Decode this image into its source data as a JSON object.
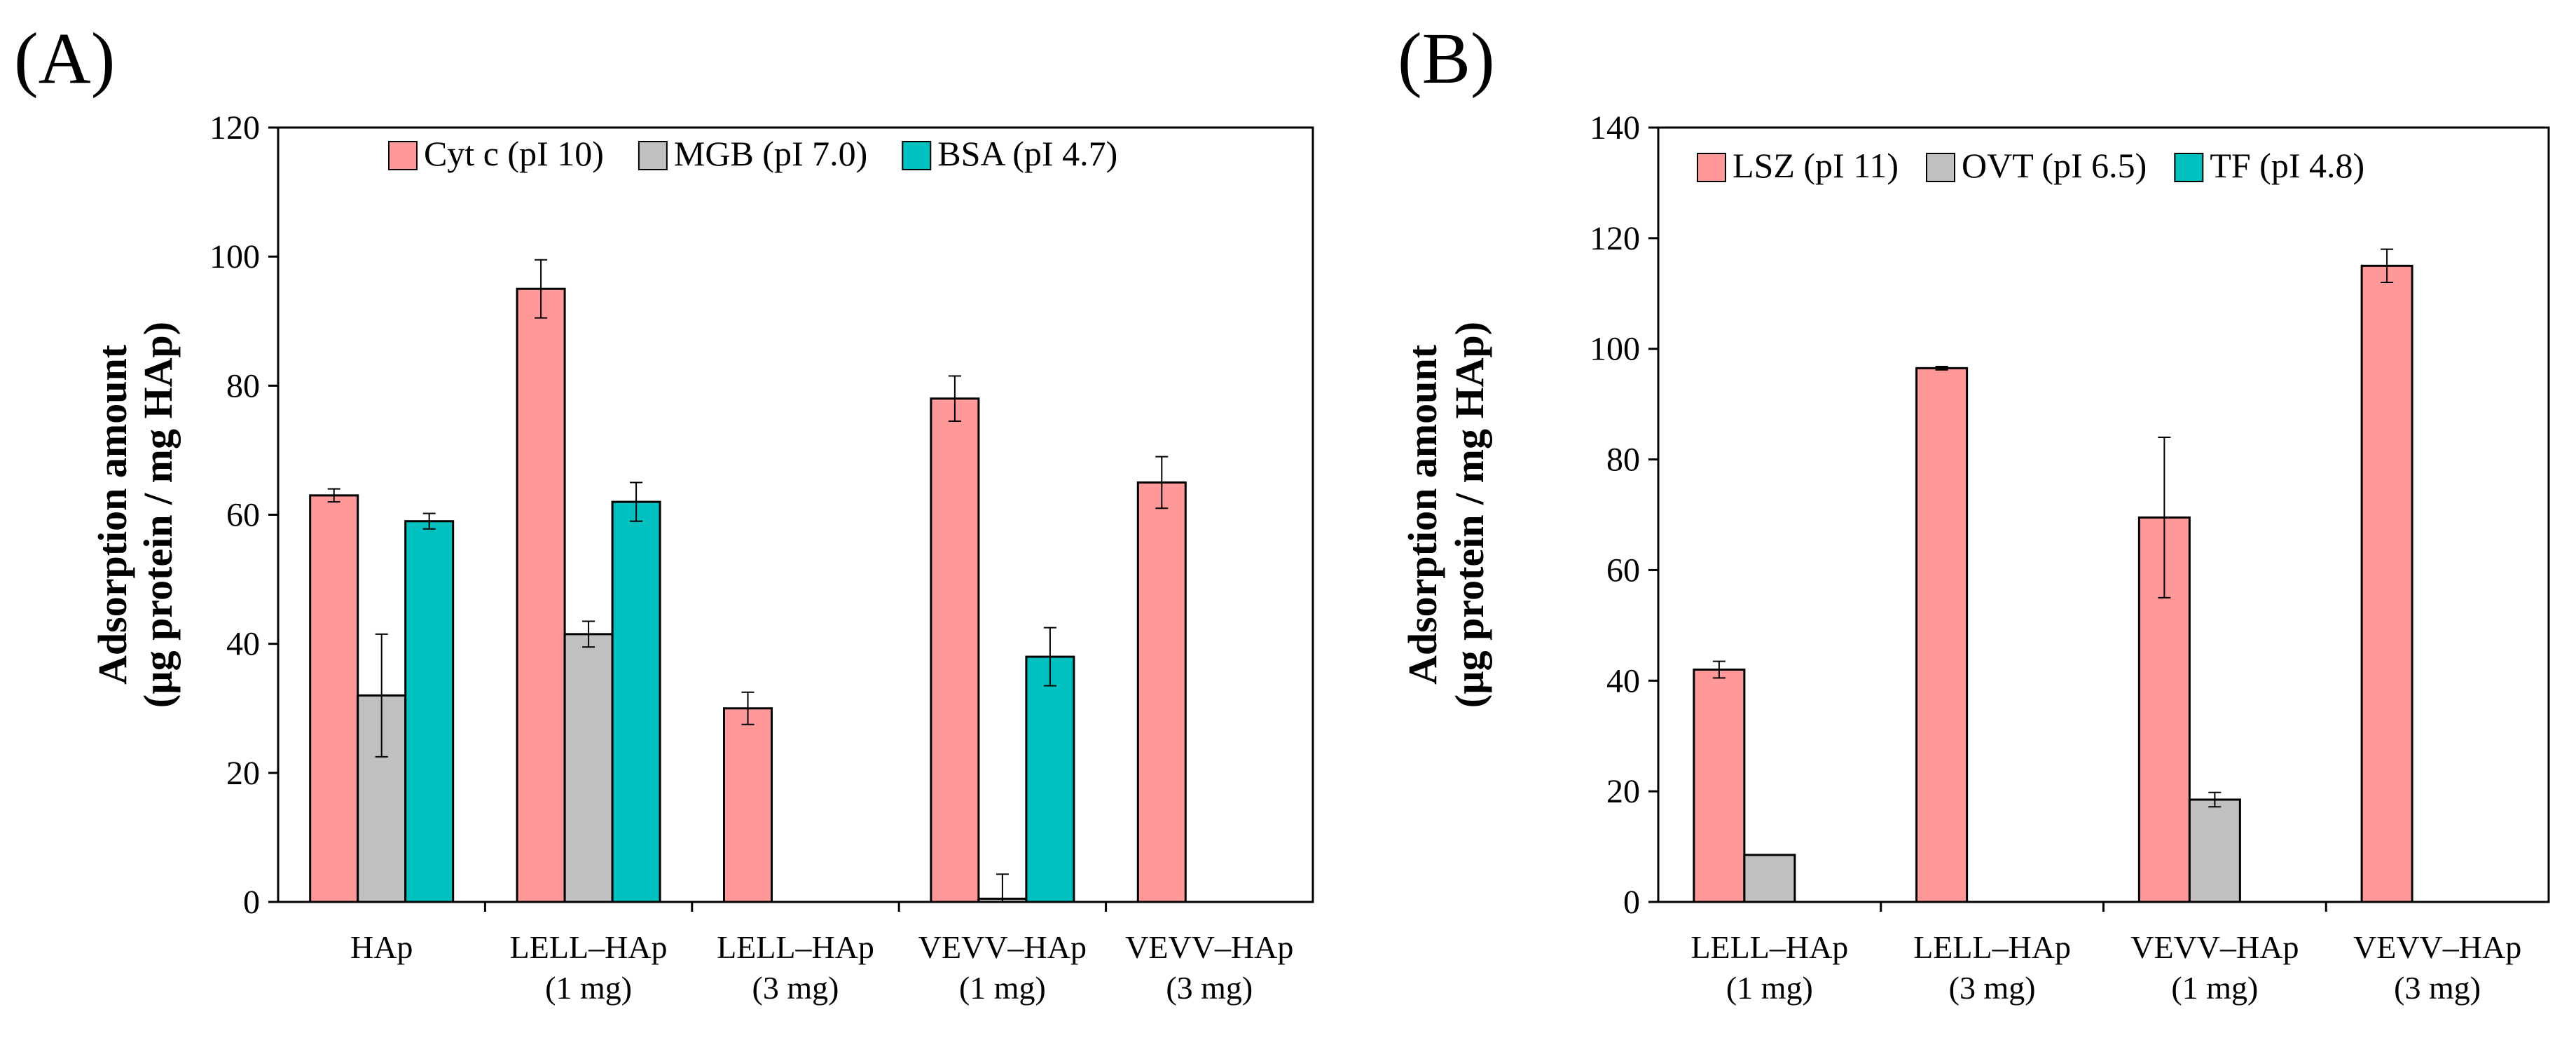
{
  "chart_data": [
    {
      "type": "bar",
      "panel_label": "(A)",
      "ylabel_lines": [
        "Adsorption amount",
        "(µg protein / mg HAp)"
      ],
      "ylim": [
        0,
        120
      ],
      "yticks": [
        0,
        20,
        40,
        60,
        80,
        100,
        120
      ],
      "categories": [
        [
          "HAp"
        ],
        [
          "LELL–HAp",
          "(1 mg)"
        ],
        [
          "LELL–HAp",
          "(3 mg)"
        ],
        [
          "VEVV–HAp",
          "(1 mg)"
        ],
        [
          "VEVV–HAp",
          "(3 mg)"
        ]
      ],
      "legend_position": "top-right",
      "series": [
        {
          "name": "Cyt c (pI 10)",
          "color": "#FF9999",
          "values": [
            63,
            95,
            30,
            78,
            65
          ],
          "errors": [
            1,
            4.5,
            2.5,
            3.5,
            4
          ]
        },
        {
          "name": "MGB (pI 7.0)",
          "color": "#C0C0C0",
          "values": [
            32,
            41.5,
            null,
            0.5,
            null
          ],
          "errors": [
            9.5,
            2,
            null,
            3.8,
            null
          ]
        },
        {
          "name": "BSA (pI 4.7)",
          "color": "#00C0C0",
          "values": [
            59,
            62,
            null,
            38,
            null
          ],
          "errors": [
            1.2,
            3,
            null,
            4.5,
            null
          ]
        }
      ]
    },
    {
      "type": "bar",
      "panel_label": "(B)",
      "ylabel_lines": [
        "Adsorption amount",
        "(µg protein / mg HAp)"
      ],
      "ylim": [
        0,
        140
      ],
      "yticks": [
        0,
        20,
        40,
        60,
        80,
        100,
        120,
        140
      ],
      "categories": [
        [
          "LELL–HAp",
          "(1 mg)"
        ],
        [
          "LELL–HAp",
          "(3 mg)"
        ],
        [
          "VEVV–HAp",
          "(1 mg)"
        ],
        [
          "VEVV–HAp",
          "(3 mg)"
        ]
      ],
      "legend_position": "top",
      "series": [
        {
          "name": "LSZ (pI 11)",
          "color": "#FF9999",
          "values": [
            42,
            96.5,
            69.5,
            115
          ],
          "errors": [
            1.5,
            0.3,
            14.5,
            3
          ]
        },
        {
          "name": "OVT (pI 6.5)",
          "color": "#C0C0C0",
          "values": [
            8.5,
            null,
            18.5,
            null
          ],
          "errors": [
            null,
            null,
            1.3,
            null
          ]
        },
        {
          "name": "TF (pI 4.8)",
          "color": "#00C0C0",
          "values": [
            null,
            null,
            null,
            null
          ],
          "errors": [
            null,
            null,
            null,
            null
          ]
        }
      ]
    }
  ]
}
